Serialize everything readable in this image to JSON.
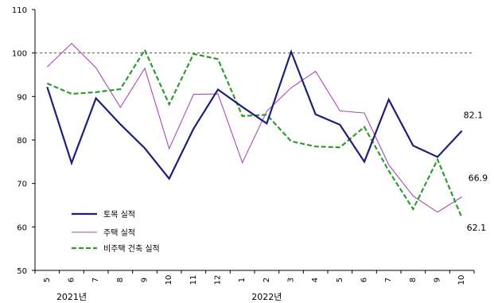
{
  "chart_data": {
    "type": "line",
    "title": "",
    "xlabel": "",
    "ylabel": "",
    "ylim": [
      50,
      110
    ],
    "yticks": [
      50,
      60,
      70,
      80,
      90,
      100,
      110
    ],
    "categories": [
      "5",
      "6",
      "7",
      "8",
      "9",
      "10",
      "11",
      "12",
      "1",
      "2",
      "3",
      "4",
      "5",
      "6",
      "7",
      "8",
      "9",
      "10"
    ],
    "year_labels": [
      {
        "label": "2021년",
        "category_index": 1
      },
      {
        "label": "2022년",
        "category_index": 9
      }
    ],
    "reference_line": {
      "value": 100,
      "style": "dashed"
    },
    "legend_position": "bottom-left",
    "series": [
      {
        "name": "토목 실적",
        "color": "#1f1f7a",
        "style": "solid",
        "width": 2.2,
        "values": [
          92.2,
          74.7,
          89.6,
          83.6,
          78.1,
          71.1,
          82.6,
          91.6,
          87.6,
          83.8,
          100.3,
          85.9,
          83.5,
          75.0,
          89.3,
          78.7,
          76.1,
          82.1
        ],
        "end_label": "82.1"
      },
      {
        "name": "주택 실적",
        "color": "#a64ab8",
        "style": "solid",
        "width": 1.1,
        "values": [
          96.8,
          102.2,
          96.6,
          87.5,
          96.5,
          78.0,
          90.5,
          90.6,
          74.8,
          86.6,
          92.0,
          95.8,
          86.7,
          86.2,
          74.3,
          67.1,
          63.4,
          66.9
        ],
        "end_label": "66.9"
      },
      {
        "name": "비주택 건축 실적",
        "color": "#2f9a2f",
        "style": "dashed",
        "width": 2.2,
        "values": [
          93.0,
          90.6,
          91.0,
          91.7,
          100.7,
          88.2,
          99.8,
          98.6,
          85.5,
          85.8,
          79.7,
          78.5,
          78.3,
          83.0,
          72.9,
          64.1,
          75.5,
          62.1
        ],
        "end_label": "62.1"
      }
    ]
  }
}
